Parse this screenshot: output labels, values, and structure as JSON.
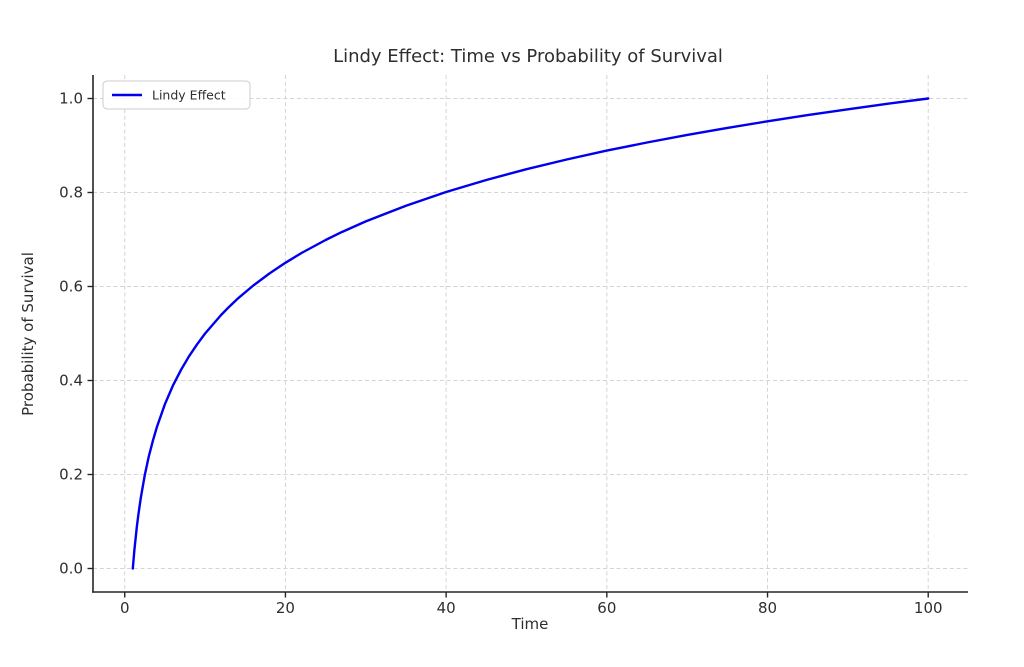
{
  "figure": {
    "background": "#ffffff"
  },
  "chart_data": {
    "type": "line",
    "title": "Lindy Effect: Time vs Probability of Survival",
    "xlabel": "Time",
    "ylabel": "Probability of Survival",
    "xlim": [
      -3.95,
      104.95
    ],
    "ylim": [
      -0.05,
      1.05
    ],
    "xticks": [
      0,
      20,
      40,
      60,
      80,
      100
    ],
    "xtick_labels": [
      "0",
      "20",
      "40",
      "60",
      "80",
      "100"
    ],
    "yticks": [
      0,
      0.2,
      0.4,
      0.6,
      0.8,
      1.0
    ],
    "ytick_labels": [
      "0.0",
      "0.2",
      "0.4",
      "0.6",
      "0.8",
      "1.0"
    ],
    "grid": true,
    "grid_style": "dashed",
    "legend_position": "upper left",
    "series": [
      {
        "name": "Lindy Effect",
        "color": "#0000ee",
        "line_width": 2.4,
        "x": [
          1,
          1.2,
          1.5,
          1.7,
          2,
          2.5,
          3,
          3.5,
          4,
          5,
          6,
          7,
          8,
          9,
          10,
          12,
          13,
          14,
          16,
          18,
          20,
          22,
          25,
          27,
          30,
          35,
          40,
          45,
          50,
          55,
          60,
          65,
          70,
          75,
          80,
          85,
          90,
          95,
          100
        ],
        "y": [
          0,
          0.0396,
          0.088,
          0.1152,
          0.1505,
          0.199,
          0.2386,
          0.272,
          0.301,
          0.3495,
          0.3891,
          0.4225,
          0.4515,
          0.4771,
          0.5,
          0.5396,
          0.557,
          0.5731,
          0.6021,
          0.6276,
          0.6505,
          0.6712,
          0.699,
          0.7157,
          0.7386,
          0.772,
          0.801,
          0.8266,
          0.8495,
          0.8702,
          0.8891,
          0.9064,
          0.9225,
          0.9375,
          0.9515,
          0.9646,
          0.9771,
          0.9889,
          1.0
        ]
      }
    ],
    "colors": {
      "grid": "#d4d4d4",
      "spine": "#262626",
      "text": "#2e2e2e",
      "legend_border": "#cccccc"
    }
  }
}
